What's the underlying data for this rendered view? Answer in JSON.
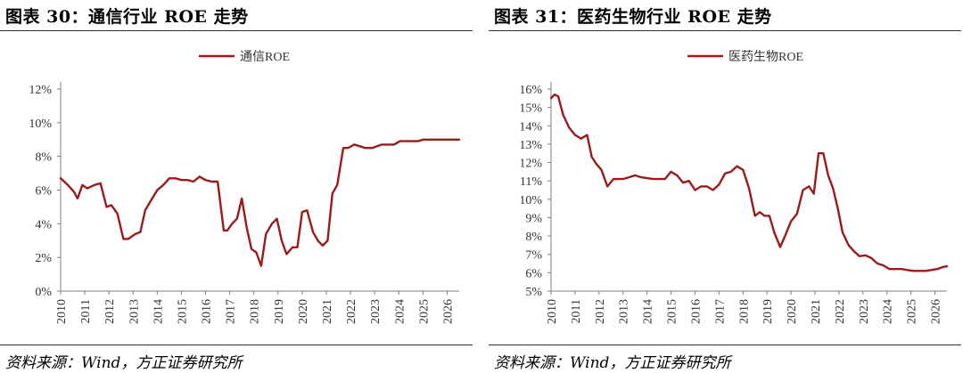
{
  "left": {
    "title": "图表 30：通信行业 ROE 走势",
    "source": "资料来源：Wind，方正证券研究所"
  },
  "right": {
    "title": "图表 31：医药生物行业 ROE 走势",
    "source": "资料来源：Wind，方正证券研究所"
  },
  "colors": {
    "line": "#9b1b1b",
    "axis": "#7f7f7f",
    "text": "#333333"
  },
  "chart_data": [
    {
      "type": "line",
      "title": "",
      "xlabel": "",
      "ylabel": "",
      "legend_position": "top-center",
      "grid": false,
      "x_ticks": [
        "2010",
        "2011",
        "2012",
        "2013",
        "2014",
        "2015",
        "2016",
        "2017",
        "2018",
        "2019",
        "2020",
        "2021",
        "2022",
        "2023",
        "2024",
        "2025",
        "2026"
      ],
      "y_ticks": [
        "0%",
        "2%",
        "4%",
        "6%",
        "8%",
        "10%",
        "12%"
      ],
      "ylim": [
        0,
        12
      ],
      "xlim": [
        2010.0,
        2026.5
      ],
      "series": [
        {
          "name": "通信ROE",
          "x": [
            2010.0,
            2010.3,
            2010.55,
            2010.7,
            2010.9,
            2011.1,
            2011.4,
            2011.65,
            2011.9,
            2012.1,
            2012.35,
            2012.6,
            2012.8,
            2013.1,
            2013.3,
            2013.5,
            2013.75,
            2014.0,
            2014.25,
            2014.5,
            2014.75,
            2015.0,
            2015.25,
            2015.5,
            2015.75,
            2016.0,
            2016.25,
            2016.5,
            2016.75,
            2016.9,
            2017.1,
            2017.3,
            2017.5,
            2017.7,
            2017.9,
            2018.1,
            2018.3,
            2018.5,
            2018.75,
            2018.95,
            2019.15,
            2019.35,
            2019.6,
            2019.8,
            2020.0,
            2020.2,
            2020.45,
            2020.65,
            2020.85,
            2021.05,
            2021.25,
            2021.45,
            2021.7,
            2021.9,
            2022.15,
            2022.4,
            2022.6,
            2022.9,
            2023.1,
            2023.3,
            2023.55,
            2023.8,
            2024.05,
            2024.3,
            2024.55,
            2024.8,
            2025.0,
            2025.25,
            2025.5,
            2025.75,
            2026.0,
            2026.25,
            2026.5
          ],
          "y": [
            6.7,
            6.3,
            5.9,
            5.5,
            6.3,
            6.1,
            6.3,
            6.4,
            5.0,
            5.1,
            4.6,
            3.1,
            3.1,
            3.4,
            3.5,
            4.8,
            5.4,
            6.0,
            6.3,
            6.7,
            6.7,
            6.6,
            6.6,
            6.5,
            6.8,
            6.6,
            6.5,
            6.5,
            3.6,
            3.6,
            4.0,
            4.3,
            5.5,
            3.8,
            2.5,
            2.3,
            1.5,
            3.4,
            4.0,
            4.3,
            3.0,
            2.2,
            2.6,
            2.6,
            4.7,
            4.8,
            3.5,
            3.0,
            2.7,
            3.0,
            5.8,
            6.3,
            8.5,
            8.5,
            8.7,
            8.6,
            8.5,
            8.5,
            8.6,
            8.7,
            8.7,
            8.7,
            8.9,
            8.9,
            8.9,
            8.9,
            9.0,
            9.0,
            9.0,
            9.0,
            9.0,
            9.0,
            9.0
          ]
        }
      ]
    },
    {
      "type": "line",
      "title": "",
      "xlabel": "",
      "ylabel": "",
      "legend_position": "top-center",
      "grid": false,
      "x_ticks": [
        "2010",
        "2011",
        "2012",
        "2013",
        "2014",
        "2015",
        "2016",
        "2017",
        "2018",
        "2019",
        "2020",
        "2021",
        "2022",
        "2023",
        "2024",
        "2025",
        "2026"
      ],
      "y_ticks": [
        "5%",
        "6%",
        "7%",
        "8%",
        "9%",
        "10%",
        "11%",
        "12%",
        "13%",
        "14%",
        "15%",
        "16%"
      ],
      "ylim": [
        5,
        16
      ],
      "xlim": [
        2010.0,
        2026.5
      ],
      "series": [
        {
          "name": "医药生物ROE",
          "x": [
            2010.0,
            2010.15,
            2010.3,
            2010.5,
            2010.75,
            2011.0,
            2011.25,
            2011.5,
            2011.7,
            2011.9,
            2012.1,
            2012.35,
            2012.6,
            2012.8,
            2013.0,
            2013.25,
            2013.5,
            2013.75,
            2014.0,
            2014.25,
            2014.5,
            2014.75,
            2015.0,
            2015.25,
            2015.5,
            2015.75,
            2016.0,
            2016.25,
            2016.5,
            2016.75,
            2017.0,
            2017.25,
            2017.5,
            2017.75,
            2018.0,
            2018.25,
            2018.5,
            2018.7,
            2018.9,
            2019.1,
            2019.3,
            2019.55,
            2019.75,
            2020.0,
            2020.25,
            2020.5,
            2020.75,
            2020.95,
            2021.15,
            2021.35,
            2021.55,
            2021.75,
            2021.95,
            2022.15,
            2022.4,
            2022.6,
            2022.85,
            2023.1,
            2023.35,
            2023.6,
            2023.85,
            2024.1,
            2024.35,
            2024.6,
            2024.85,
            2025.1,
            2025.35,
            2025.6,
            2025.85,
            2026.1,
            2026.3,
            2026.5
          ],
          "y": [
            15.5,
            15.7,
            15.6,
            14.6,
            13.9,
            13.5,
            13.3,
            13.5,
            12.3,
            11.9,
            11.6,
            10.7,
            11.1,
            11.1,
            11.1,
            11.2,
            11.3,
            11.2,
            11.15,
            11.1,
            11.1,
            11.1,
            11.5,
            11.3,
            10.9,
            11.0,
            10.5,
            10.7,
            10.7,
            10.5,
            10.8,
            11.4,
            11.5,
            11.8,
            11.6,
            10.6,
            9.1,
            9.3,
            9.1,
            9.1,
            8.2,
            7.4,
            8.0,
            8.8,
            9.2,
            10.5,
            10.7,
            10.3,
            12.5,
            12.5,
            11.3,
            10.6,
            9.5,
            8.2,
            7.5,
            7.2,
            6.9,
            6.95,
            6.8,
            6.5,
            6.4,
            6.2,
            6.2,
            6.2,
            6.15,
            6.1,
            6.1,
            6.1,
            6.15,
            6.2,
            6.3,
            6.35
          ]
        }
      ]
    }
  ]
}
